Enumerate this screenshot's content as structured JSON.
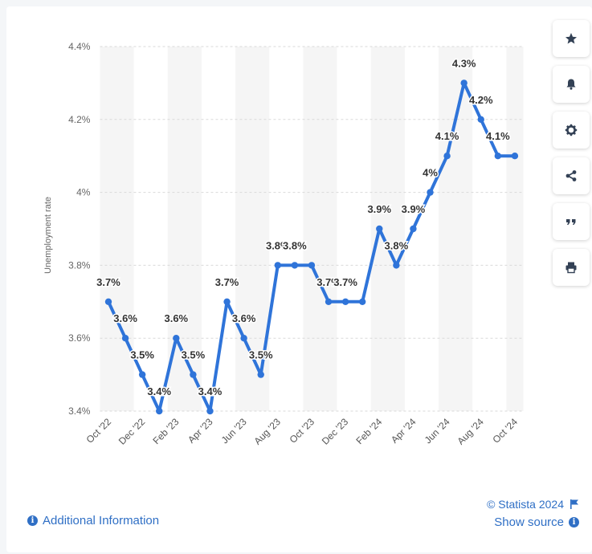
{
  "chart_data": {
    "type": "line",
    "ylabel": "Unemployment rate",
    "ylim": [
      3.4,
      4.4
    ],
    "y_ticks": [
      "3.4%",
      "3.6%",
      "3.8%",
      "4%",
      "4.2%",
      "4.4%"
    ],
    "x_tick_labels": [
      "Oct '22",
      "Dec '22",
      "Feb '23",
      "Apr '23",
      "Jun '23",
      "Aug '23",
      "Oct '23",
      "Dec '23",
      "Feb '24",
      "Apr '24",
      "Jun '24",
      "Aug '24",
      "Oct '24"
    ],
    "x": [
      "Oct '22",
      "Nov '22",
      "Dec '22",
      "Jan '23",
      "Feb '23",
      "Mar '23",
      "Apr '23",
      "May '23",
      "Jun '23",
      "Jul '23",
      "Aug '23",
      "Sep '23",
      "Oct '23",
      "Nov '23",
      "Dec '23",
      "Jan '24",
      "Feb '24",
      "Mar '24",
      "Apr '24",
      "May '24",
      "Jun '24",
      "Jul '24",
      "Aug '24",
      "Sep '24",
      "Oct '24"
    ],
    "values": [
      3.7,
      3.6,
      3.5,
      3.4,
      3.6,
      3.5,
      3.4,
      3.7,
      3.6,
      3.5,
      3.8,
      3.8,
      3.8,
      3.7,
      3.7,
      3.7,
      3.9,
      3.8,
      3.9,
      4.0,
      4.1,
      4.3,
      4.2,
      4.1,
      4.1
    ],
    "data_labels": [
      "3.7%",
      "3.6%",
      "3.5%",
      "3.4%",
      "3.6%",
      "3.5%",
      "3.4%",
      "3.7%",
      "3.6%",
      "3.5%",
      "3.8%",
      "3.8%",
      "",
      "3.7%",
      "3.7%",
      "",
      "3.9%",
      "3.8%",
      "3.9%",
      "4%",
      "4.1%",
      "4.3%",
      "4.2%",
      "4.1%",
      ""
    ],
    "grid": true,
    "line_color": "#2f74d9"
  },
  "tools": [
    {
      "name": "bookmark-button",
      "icon": "star-icon"
    },
    {
      "name": "notification-button",
      "icon": "bell-icon"
    },
    {
      "name": "settings-button",
      "icon": "gear-icon"
    },
    {
      "name": "share-button",
      "icon": "share-icon"
    },
    {
      "name": "cite-button",
      "icon": "quote-icon"
    },
    {
      "name": "print-button",
      "icon": "printer-icon"
    }
  ],
  "footer": {
    "copyright": "© Statista 2024",
    "additional_info": "Additional Information",
    "show_source": "Show source"
  },
  "colors": {
    "accent": "#2f6fc5",
    "band": "#f5f5f5",
    "gridline": "#d9d9d9"
  }
}
